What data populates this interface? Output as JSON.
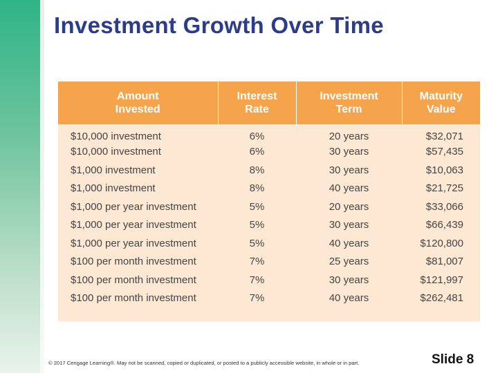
{
  "slide": {
    "title": "Investment Growth Over Time",
    "footer": "© 2017 Cengage Learning®. May not be scanned, copied or duplicated, or posted to a publicly accessible website, in whole or in part.",
    "slide_number": "Slide 8"
  },
  "colors": {
    "title": "#2b3c8c",
    "header_bg": "#f6a44c",
    "body_bg": "#fde8d3",
    "side_bar": "#2fb487"
  },
  "table": {
    "headers": [
      [
        "Amount",
        "Invested"
      ],
      [
        "Interest",
        "Rate"
      ],
      [
        "Investment",
        "Term"
      ],
      [
        "Maturity",
        "Value"
      ]
    ],
    "rows": [
      [
        "$10,000 investment",
        "6%",
        "20 years",
        "$32,071"
      ],
      [
        "$10,000 investment",
        "6%",
        "30 years",
        "$57,435"
      ],
      [
        "$1,000 investment",
        "8%",
        "30 years",
        "$10,063"
      ],
      [
        "$1,000 investment",
        "8%",
        "40 years",
        "$21,725"
      ],
      [
        "$1,000 per year investment",
        "5%",
        "20 years",
        "$33,066"
      ],
      [
        "$1,000 per year investment",
        "5%",
        "30 years",
        "$66,439"
      ],
      [
        "$1,000 per year investment",
        "5%",
        "40 years",
        "$120,800"
      ],
      [
        "$100 per month investment",
        "7%",
        "25 years",
        "$81,007"
      ],
      [
        "$100 per month investment",
        "7%",
        "30 years",
        "$121,997"
      ],
      [
        "$100 per month investment",
        "7%",
        "40 years",
        "$262,481"
      ]
    ]
  }
}
